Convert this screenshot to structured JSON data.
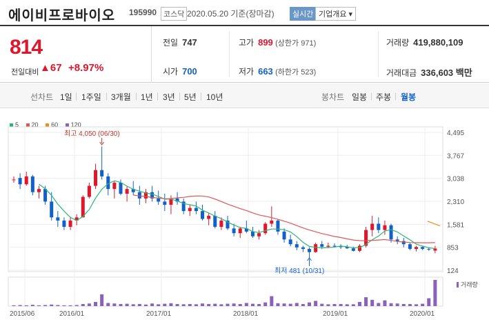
{
  "header": {
    "name": "에이비프로바이오",
    "code": "195990",
    "market": "코스닥",
    "date": "2020.05.20 기준(장마감)",
    "realtime_label": "실시간",
    "company_info_label": "기업개요 ▾"
  },
  "quote": {
    "price": "814",
    "change_label": "전일대비",
    "change": "▲67",
    "change_pct": "+8.97%",
    "prev_label": "전일",
    "prev": "747",
    "high_label": "고가",
    "high": "899",
    "upper_limit": "(상한가 971)",
    "volume_label": "거래량",
    "volume": "419,880,109",
    "open_label": "시가",
    "open": "700",
    "low_label": "저가",
    "low": "663",
    "lower_limit": "(하한가 523)",
    "amount_label": "거래대금",
    "amount": "336,603 백만"
  },
  "tabs": {
    "line_chart": "선차트",
    "periods": [
      "1일",
      "1주일",
      "3개월",
      "1년",
      "3년",
      "5년",
      "10년"
    ],
    "candle_chart": "봉차트",
    "candle_periods": [
      "일봉",
      "주봉",
      "월봉"
    ],
    "active_candle": "월봉"
  },
  "legend": [
    {
      "label": "5",
      "color": "#2bb673"
    },
    {
      "label": "20",
      "color": "#e05555"
    },
    {
      "label": "60",
      "color": "#f08a24"
    },
    {
      "label": "120",
      "color": "#8a63b8"
    }
  ],
  "chart_data": {
    "type": "candlestick",
    "y_ticks": [
      "4,495",
      "3,767",
      "3,038",
      "2,310",
      "1,581",
      "853",
      "124"
    ],
    "x_ticks": [
      "2015/06",
      "2016/01",
      "2017/01",
      "2018/01",
      "2019/01",
      "2020/01"
    ],
    "high_annotation": "최고 4,050 (06/30)",
    "low_annotation": "최저 481 (10/31)",
    "volume_label": "거래량",
    "candles": [
      [
        3000,
        3100,
        2900,
        3000
      ],
      [
        3050,
        3200,
        2700,
        2850
      ],
      [
        2850,
        3250,
        2800,
        3100
      ],
      [
        3100,
        3150,
        2500,
        2600
      ],
      [
        2600,
        2800,
        2400,
        2700
      ],
      [
        2700,
        2800,
        2200,
        2300
      ],
      [
        2300,
        2600,
        1700,
        1800
      ],
      [
        1800,
        2000,
        1500,
        1700
      ],
      [
        1700,
        1800,
        1400,
        1500
      ],
      [
        1500,
        1800,
        1400,
        1700
      ],
      [
        1700,
        1900,
        1550,
        1800
      ],
      [
        1800,
        2500,
        1800,
        2450
      ],
      [
        2450,
        2900,
        2400,
        2800
      ],
      [
        2800,
        3500,
        2700,
        3300
      ],
      [
        3300,
        4050,
        3000,
        3100
      ],
      [
        3100,
        3200,
        2500,
        2700
      ],
      [
        2700,
        2950,
        2400,
        2900
      ],
      [
        2900,
        3000,
        2500,
        2550
      ],
      [
        2550,
        2800,
        2300,
        2700
      ],
      [
        2700,
        2950,
        2500,
        2600
      ],
      [
        2600,
        2800,
        2200,
        2400
      ],
      [
        2400,
        2700,
        2250,
        2600
      ],
      [
        2600,
        2800,
        2300,
        2400
      ],
      [
        2400,
        2650,
        2200,
        2300
      ],
      [
        2300,
        2550,
        2000,
        2200
      ],
      [
        2200,
        2500,
        1900,
        2400
      ],
      [
        2400,
        2600,
        2200,
        2300
      ],
      [
        2300,
        2400,
        1900,
        2000
      ],
      [
        2000,
        2200,
        1850,
        2100
      ],
      [
        2100,
        2300,
        1900,
        2000
      ],
      [
        2000,
        2200,
        1700,
        1750
      ],
      [
        1750,
        1950,
        1550,
        1850
      ],
      [
        1850,
        2000,
        1450,
        1500
      ],
      [
        1500,
        1800,
        1400,
        1700
      ],
      [
        1700,
        1850,
        1400,
        1450
      ],
      [
        1450,
        1600,
        1200,
        1300
      ],
      [
        1300,
        1500,
        1150,
        1450
      ],
      [
        1450,
        1700,
        1300,
        1350
      ],
      [
        1350,
        1500,
        1150,
        1200
      ],
      [
        1200,
        1400,
        1100,
        1300
      ],
      [
        1300,
        1650,
        1250,
        1600
      ],
      [
        1600,
        2150,
        1500,
        1700
      ],
      [
        1700,
        1750,
        1250,
        1350
      ],
      [
        1350,
        1450,
        1000,
        1100
      ],
      [
        1100,
        1250,
        880,
        950
      ],
      [
        950,
        1050,
        760,
        850
      ],
      [
        850,
        900,
        700,
        800
      ],
      [
        800,
        850,
        481,
        700
      ],
      [
        700,
        1000,
        680,
        950
      ],
      [
        950,
        1050,
        800,
        870
      ],
      [
        870,
        1000,
        820,
        900
      ],
      [
        900,
        980,
        840,
        880
      ],
      [
        880,
        950,
        800,
        860
      ],
      [
        860,
        930,
        800,
        820
      ],
      [
        820,
        870,
        720,
        740
      ],
      [
        740,
        950,
        700,
        900
      ],
      [
        900,
        1500,
        850,
        1400
      ],
      [
        1400,
        1850,
        1200,
        1600
      ],
      [
        1600,
        1800,
        1300,
        1400
      ],
      [
        1400,
        1700,
        1250,
        1550
      ],
      [
        1550,
        1600,
        1000,
        1100
      ],
      [
        1100,
        1200,
        950,
        1050
      ],
      [
        1050,
        1150,
        850,
        950
      ],
      [
        950,
        1000,
        760,
        800
      ],
      [
        800,
        900,
        720,
        860
      ],
      [
        860,
        900,
        760,
        800
      ],
      [
        800,
        850,
        740,
        780
      ],
      [
        747,
        899,
        663,
        814
      ]
    ],
    "volumes": [
      3,
      4,
      3,
      5,
      3,
      4,
      6,
      4,
      3,
      3,
      4,
      8,
      10,
      16,
      45,
      12,
      10,
      8,
      9,
      7,
      8,
      6,
      10,
      7,
      9,
      11,
      8,
      7,
      8,
      7,
      10,
      8,
      9,
      7,
      9,
      10,
      8,
      12,
      9,
      8,
      14,
      38,
      11,
      10,
      9,
      12,
      8,
      14,
      20,
      9,
      7,
      8,
      8,
      7,
      7,
      16,
      34,
      24,
      12,
      22,
      11,
      10,
      8,
      8,
      7,
      9,
      30,
      100
    ]
  }
}
